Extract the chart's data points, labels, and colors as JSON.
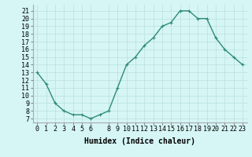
{
  "x": [
    0,
    1,
    2,
    3,
    4,
    5,
    6,
    7,
    8,
    9,
    10,
    11,
    12,
    13,
    14,
    15,
    16,
    17,
    18,
    19,
    20,
    21,
    22,
    23
  ],
  "y": [
    13,
    11.5,
    9,
    8,
    7.5,
    7.5,
    7,
    7.5,
    8,
    11,
    14,
    15,
    16.5,
    17.5,
    19,
    19.5,
    21,
    21,
    20,
    20,
    17.5,
    16,
    15,
    14
  ],
  "line_color": "#2e8b77",
  "marker": "+",
  "marker_size": 3.5,
  "bg_color": "#d6f5f5",
  "grid_color": "#b8e0e0",
  "xlabel": "Humidex (Indice chaleur)",
  "xlim": [
    -0.5,
    23.5
  ],
  "ylim": [
    6.5,
    21.8
  ],
  "xticks": [
    0,
    1,
    2,
    3,
    4,
    5,
    6,
    8,
    9,
    10,
    11,
    12,
    13,
    14,
    15,
    16,
    17,
    18,
    19,
    20,
    21,
    22,
    23
  ],
  "xtick_labels": [
    "0",
    "1",
    "2",
    "3",
    "4",
    "5",
    "6",
    "8",
    "9",
    "10",
    "11",
    "12",
    "13",
    "14",
    "15",
    "16",
    "17",
    "18",
    "19",
    "20",
    "21",
    "22",
    "23"
  ],
  "yticks": [
    7,
    8,
    9,
    10,
    11,
    12,
    13,
    14,
    15,
    16,
    17,
    18,
    19,
    20,
    21
  ],
  "xlabel_fontsize": 7,
  "tick_fontsize": 6,
  "linewidth": 1.0
}
